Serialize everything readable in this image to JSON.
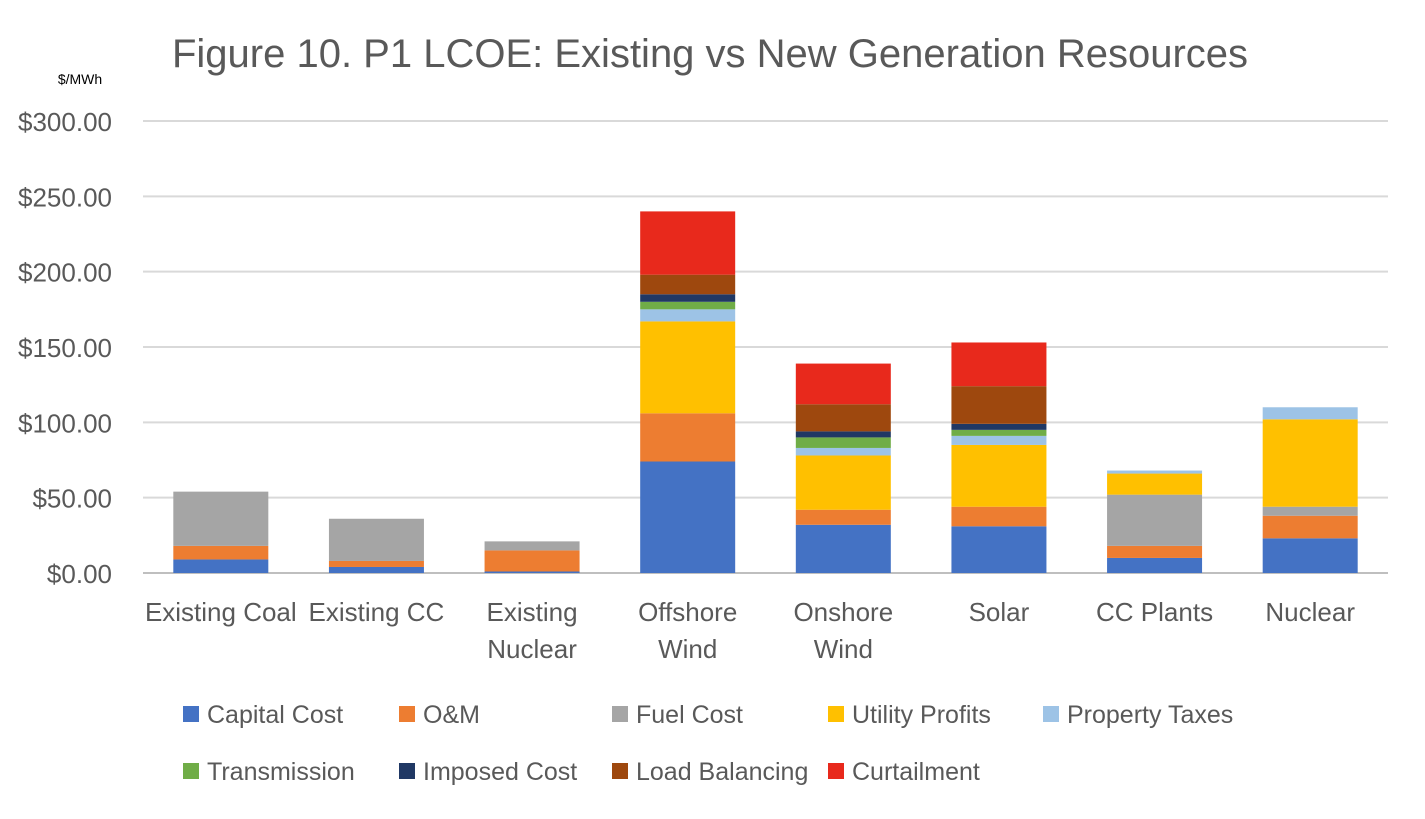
{
  "chart_data": {
    "type": "bar",
    "stacked": true,
    "title": "Figure 10. P1 LCOE: Existing vs New Generation Resources",
    "unit_label": "$/MWh",
    "ylim": [
      0,
      300
    ],
    "yticks": [
      0,
      50,
      100,
      150,
      200,
      250,
      300
    ],
    "ytick_labels": [
      "$0.00",
      "$50.00",
      "$100.00",
      "$150.00",
      "$200.00",
      "$250.00",
      "$300.00"
    ],
    "grid": true,
    "legend_position": "bottom",
    "categories": [
      "Existing Coal",
      "Existing CC",
      "Existing Nuclear",
      "Offshore Wind",
      "Onshore Wind",
      "Solar",
      "CC Plants",
      "Nuclear"
    ],
    "category_lines": [
      [
        "Existing Coal"
      ],
      [
        "Existing CC"
      ],
      [
        "Existing",
        "Nuclear"
      ],
      [
        "Offshore",
        "Wind"
      ],
      [
        "Onshore",
        "Wind"
      ],
      [
        "Solar"
      ],
      [
        "CC Plants"
      ],
      [
        "Nuclear"
      ]
    ],
    "series": [
      {
        "name": "Capital Cost",
        "color": "#4472C4",
        "values": [
          9,
          4,
          1,
          74,
          32,
          31,
          10,
          23
        ]
      },
      {
        "name": "O&M",
        "color": "#ED7D31",
        "values": [
          9,
          4,
          14,
          32,
          10,
          13,
          8,
          15
        ]
      },
      {
        "name": "Fuel Cost",
        "color": "#A5A5A5",
        "values": [
          36,
          28,
          6,
          0,
          0,
          0,
          34,
          6
        ]
      },
      {
        "name": "Utility Profits",
        "color": "#FFC000",
        "values": [
          0,
          0,
          0,
          61,
          36,
          41,
          14,
          58
        ]
      },
      {
        "name": "Property Taxes",
        "color": "#9DC3E6",
        "values": [
          0,
          0,
          0,
          8,
          5,
          6,
          2,
          8
        ]
      },
      {
        "name": "Transmission",
        "color": "#70AD47",
        "values": [
          0,
          0,
          0,
          5,
          7,
          4,
          0,
          0
        ]
      },
      {
        "name": "Imposed Cost",
        "color": "#203864",
        "values": [
          0,
          0,
          0,
          5,
          4,
          4,
          0,
          0
        ]
      },
      {
        "name": "Load Balancing",
        "color": "#9E480E",
        "values": [
          0,
          0,
          0,
          13,
          18,
          25,
          0,
          0
        ]
      },
      {
        "name": "Curtailment",
        "color": "#E8291C",
        "values": [
          0,
          0,
          0,
          42,
          27,
          29,
          0,
          0
        ]
      }
    ]
  }
}
